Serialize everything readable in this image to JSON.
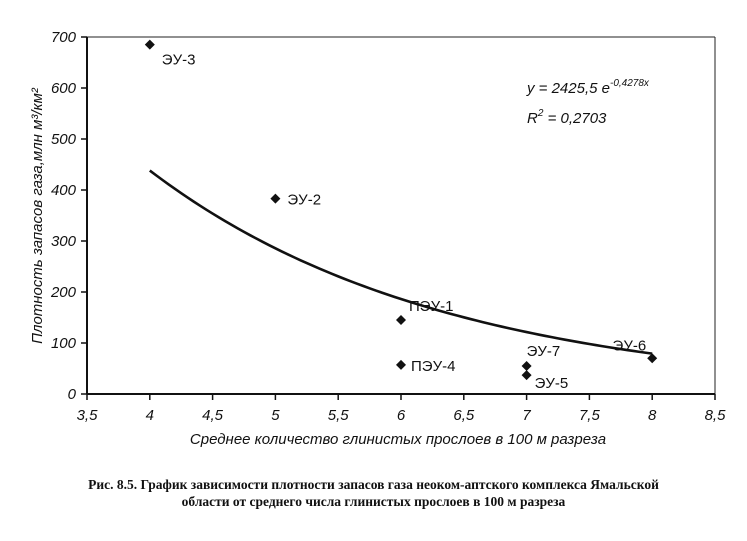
{
  "chart_data": {
    "type": "scatter",
    "xlabel": "Среднее количество глинистых прослоев в 100 м разреза",
    "ylabel": "Плотность запасов газа,млн м³/км²",
    "xlim": [
      3.5,
      8.5
    ],
    "ylim": [
      0,
      700
    ],
    "x_ticks": [
      "3,5",
      "4",
      "4,5",
      "5",
      "5,5",
      "6",
      "6,5",
      "7",
      "7,5",
      "8",
      "8,5"
    ],
    "x_tick_values": [
      3.5,
      4,
      4.5,
      5,
      5.5,
      6,
      6.5,
      7,
      7.5,
      8,
      8.5
    ],
    "y_ticks": [
      "0",
      "100",
      "200",
      "300",
      "400",
      "500",
      "600",
      "700"
    ],
    "y_tick_values": [
      0,
      100,
      200,
      300,
      400,
      500,
      600,
      700
    ],
    "grid": false,
    "points": [
      {
        "label": "ЭУ-3",
        "x": 4.0,
        "y": 685
      },
      {
        "label": "ЭУ-2",
        "x": 5.0,
        "y": 383
      },
      {
        "label": "ПЭУ-1",
        "x": 6.0,
        "y": 145
      },
      {
        "label": "ПЭУ-4",
        "x": 6.0,
        "y": 57
      },
      {
        "label": "ЭУ-7",
        "x": 7.0,
        "y": 55
      },
      {
        "label": "ЭУ-5",
        "x": 7.0,
        "y": 37
      },
      {
        "label": "ЭУ-6",
        "x": 8.0,
        "y": 70
      }
    ],
    "trendline": {
      "type": "exponential",
      "a": 2425.5,
      "b": -0.4278,
      "x_range": [
        4.0,
        8.0
      ],
      "equation_prefix": "y = 2425,5 e",
      "equation_exponent": "-0,4278x",
      "r2_prefix": "R",
      "r2_exponent": "2",
      "r2_value": " = 0,2703"
    }
  },
  "caption": {
    "line1": "Рис. 8.5. График зависимости  плотности запасов газа неоком-аптского комплекса Ямальской",
    "line2": "области от среднего числа глинистых прослоев в 100 м разреза"
  }
}
